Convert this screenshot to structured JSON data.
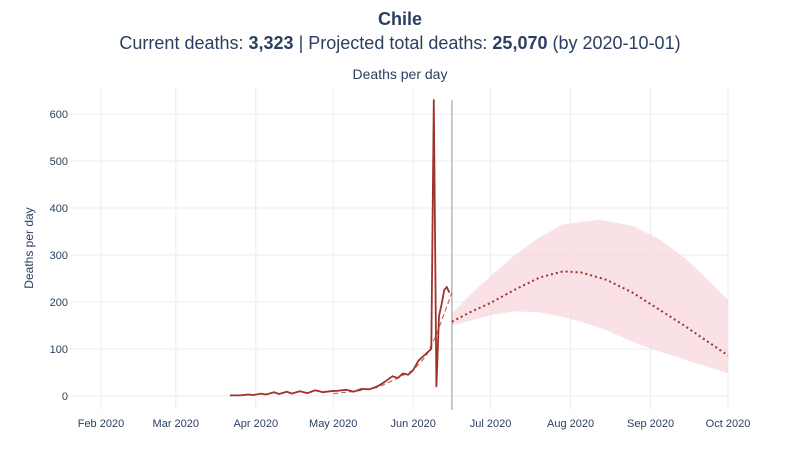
{
  "header": {
    "country": "Chile",
    "current_label": "Current deaths:",
    "current_value": "3,323",
    "separator": "|",
    "projected_label": "Projected total deaths:",
    "projected_value": "25,070",
    "projected_suffix": "(by 2020-10-01)"
  },
  "colors": {
    "observed": "#a0322c",
    "projection": "#a0322c",
    "band": "#f7d7de",
    "today_line": "#b8b8b8",
    "grid": "#e8ecf3"
  },
  "chart_data": {
    "type": "line",
    "title": "Deaths per day",
    "xlabel": "",
    "ylabel": "Deaths per day",
    "xlim": [
      "2020-01-20",
      "2020-10-01"
    ],
    "ylim": [
      -30,
      630
    ],
    "x_ticks": [
      {
        "date": "2020-02-01",
        "label": "Feb 2020"
      },
      {
        "date": "2020-03-01",
        "label": "Mar 2020"
      },
      {
        "date": "2020-04-01",
        "label": "Apr 2020"
      },
      {
        "date": "2020-05-01",
        "label": "May 2020"
      },
      {
        "date": "2020-06-01",
        "label": "Jun 2020"
      },
      {
        "date": "2020-07-01",
        "label": "Jul 2020"
      },
      {
        "date": "2020-08-01",
        "label": "Aug 2020"
      },
      {
        "date": "2020-09-01",
        "label": "Sep 2020"
      },
      {
        "date": "2020-10-01",
        "label": "Oct 2020"
      }
    ],
    "y_ticks": [
      0,
      100,
      200,
      300,
      400,
      500,
      600
    ],
    "grid": true,
    "today_marker": "2020-06-16",
    "series": [
      {
        "style": "solid",
        "points": [
          [
            "2020-03-22",
            1
          ],
          [
            "2020-03-26",
            1
          ],
          [
            "2020-03-29",
            3
          ],
          [
            "2020-03-31",
            2
          ],
          [
            "2020-04-03",
            5
          ],
          [
            "2020-04-05",
            3
          ],
          [
            "2020-04-08",
            8
          ],
          [
            "2020-04-10",
            4
          ],
          [
            "2020-04-13",
            9
          ],
          [
            "2020-04-15",
            5
          ],
          [
            "2020-04-18",
            10
          ],
          [
            "2020-04-21",
            6
          ],
          [
            "2020-04-24",
            12
          ],
          [
            "2020-04-27",
            8
          ],
          [
            "2020-04-30",
            10
          ],
          [
            "2020-05-03",
            11
          ],
          [
            "2020-05-06",
            13
          ],
          [
            "2020-05-09",
            9
          ],
          [
            "2020-05-12",
            15
          ],
          [
            "2020-05-15",
            14
          ],
          [
            "2020-05-18",
            20
          ],
          [
            "2020-05-21",
            30
          ],
          [
            "2020-05-24",
            42
          ],
          [
            "2020-05-26",
            38
          ],
          [
            "2020-05-28",
            48
          ],
          [
            "2020-05-30",
            45
          ],
          [
            "2020-06-01",
            55
          ],
          [
            "2020-06-03",
            75
          ],
          [
            "2020-06-05",
            85
          ],
          [
            "2020-06-07",
            95
          ],
          [
            "2020-06-08",
            100
          ],
          [
            "2020-06-09",
            630
          ],
          [
            "2020-06-10",
            20
          ],
          [
            "2020-06-11",
            170
          ],
          [
            "2020-06-12",
            195
          ],
          [
            "2020-06-13",
            225
          ],
          [
            "2020-06-14",
            232
          ],
          [
            "2020-06-15",
            220
          ]
        ]
      },
      {
        "style": "dashed",
        "points": [
          [
            "2020-05-01",
            5
          ],
          [
            "2020-05-10",
            10
          ],
          [
            "2020-05-18",
            18
          ],
          [
            "2020-05-25",
            35
          ],
          [
            "2020-06-01",
            55
          ],
          [
            "2020-06-06",
            85
          ],
          [
            "2020-06-10",
            130
          ],
          [
            "2020-06-13",
            175
          ],
          [
            "2020-06-16",
            220
          ]
        ]
      },
      {
        "style": "dotted",
        "points": [
          [
            "2020-06-16",
            158
          ],
          [
            "2020-06-23",
            178
          ],
          [
            "2020-07-01",
            198
          ],
          [
            "2020-07-10",
            225
          ],
          [
            "2020-07-20",
            252
          ],
          [
            "2020-07-29",
            265
          ],
          [
            "2020-08-05",
            263
          ],
          [
            "2020-08-15",
            247
          ],
          [
            "2020-08-25",
            220
          ],
          [
            "2020-09-04",
            185
          ],
          [
            "2020-09-14",
            150
          ],
          [
            "2020-09-23",
            116
          ],
          [
            "2020-10-01",
            86
          ]
        ],
        "band_upper": [
          [
            "2020-06-16",
            175
          ],
          [
            "2020-06-23",
            215
          ],
          [
            "2020-07-01",
            255
          ],
          [
            "2020-07-10",
            298
          ],
          [
            "2020-07-20",
            338
          ],
          [
            "2020-07-29",
            365
          ],
          [
            "2020-08-05",
            370
          ],
          [
            "2020-08-12",
            375
          ],
          [
            "2020-08-25",
            362
          ],
          [
            "2020-09-04",
            335
          ],
          [
            "2020-09-14",
            295
          ],
          [
            "2020-09-23",
            248
          ],
          [
            "2020-10-01",
            205
          ]
        ],
        "band_lower": [
          [
            "2020-06-16",
            150
          ],
          [
            "2020-06-23",
            160
          ],
          [
            "2020-07-01",
            172
          ],
          [
            "2020-07-10",
            180
          ],
          [
            "2020-07-20",
            178
          ],
          [
            "2020-07-29",
            168
          ],
          [
            "2020-08-05",
            158
          ],
          [
            "2020-08-15",
            140
          ],
          [
            "2020-08-25",
            115
          ],
          [
            "2020-09-04",
            95
          ],
          [
            "2020-09-14",
            78
          ],
          [
            "2020-09-23",
            62
          ],
          [
            "2020-10-01",
            48
          ]
        ]
      }
    ]
  }
}
